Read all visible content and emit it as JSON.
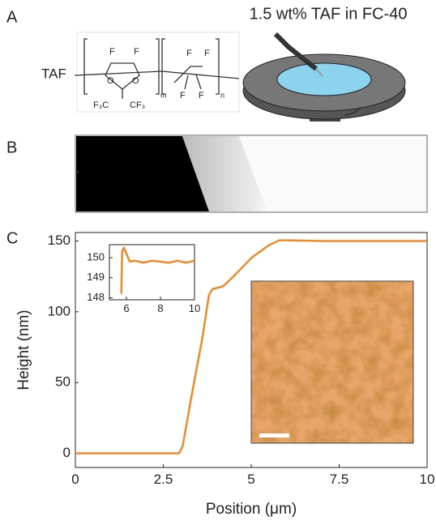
{
  "figure": {
    "panel_labels": [
      "A",
      "B",
      "C"
    ],
    "spin_title": "1.5 wt% TAF in FC-40",
    "structure": {
      "name": "TAF",
      "atoms": [
        "F",
        "F",
        "O",
        "O",
        "F₃C",
        "CF₃",
        "m",
        "F",
        "F",
        "F",
        "F",
        "n"
      ]
    }
  },
  "chart_data": [
    {
      "type": "line",
      "xlabel": "Position (μm)",
      "ylabel": "Height (nm)",
      "color": "#ee8a2a",
      "x": [
        0,
        1,
        2,
        2.95,
        3.05,
        3.3,
        3.6,
        3.8,
        3.9,
        4.2,
        4.5,
        5,
        5.5,
        5.8,
        6,
        7,
        8,
        9,
        10
      ],
      "values": [
        0,
        0,
        0,
        0,
        5,
        40,
        80,
        112,
        116,
        118,
        125,
        138,
        147,
        150.5,
        150.5,
        150,
        150,
        150,
        150
      ],
      "xlim": [
        0,
        10
      ],
      "ylim": [
        -10,
        156
      ],
      "xticks": [
        0,
        2.5,
        5,
        7.5,
        10
      ],
      "yticks": [
        0,
        50,
        100,
        150
      ]
    },
    {
      "type": "line",
      "color": "#ee8a2a",
      "x": [
        5.7,
        5.75,
        5.85,
        6,
        6.2,
        6.5,
        7,
        7.5,
        8,
        8.5,
        9,
        9.5,
        10
      ],
      "values": [
        148.2,
        150.3,
        150.5,
        150.2,
        149.8,
        149.85,
        149.75,
        149.85,
        149.8,
        149.75,
        149.85,
        149.75,
        149.85
      ],
      "xlim": [
        5,
        10
      ],
      "ylim": [
        147.9,
        150.65
      ],
      "xticks": [
        6,
        8,
        10
      ],
      "yticks": [
        148,
        149,
        150
      ]
    }
  ]
}
